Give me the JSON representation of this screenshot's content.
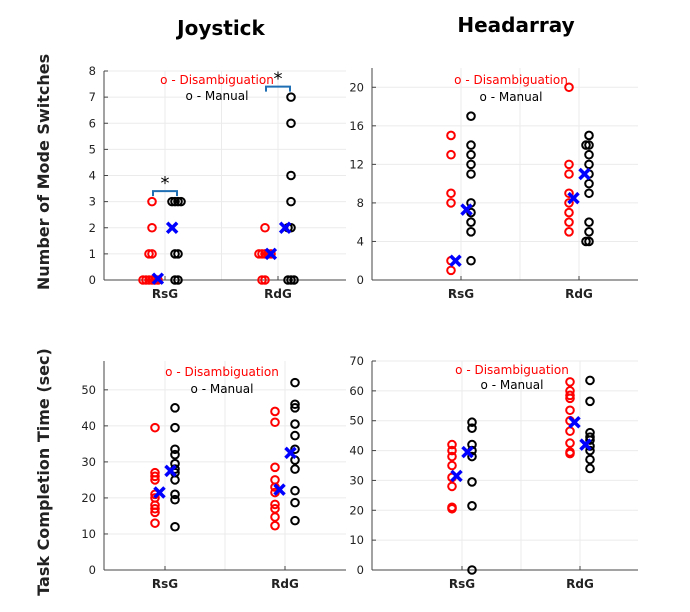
{
  "figure": {
    "column_titles": [
      "Joystick",
      "Headarray"
    ],
    "row_ylabels": [
      "Number of Mode Switches",
      "Task Completion Time (sec)"
    ]
  },
  "legend": {
    "disambiguation": "o - Disambiguation",
    "manual": "o - Manual",
    "disambiguation_color": "#ff0000",
    "manual_color": "#000000",
    "mean_color": "#0000ff"
  },
  "chart_data": [
    {
      "type": "scatter",
      "title": "Joystick",
      "ylabel": "Number of Mode Switches",
      "categories": [
        "RsG",
        "RdG"
      ],
      "ylim": [
        0,
        8
      ],
      "yticks": [
        0,
        1,
        2,
        3,
        4,
        5,
        6,
        7,
        8
      ],
      "grid": true,
      "legend_position": "top",
      "significance": [
        {
          "category": "RsG",
          "label": "*",
          "y": 3.4
        },
        {
          "category": "RdG",
          "label": "*",
          "y": 7.4
        }
      ],
      "series": [
        {
          "name": "Disambiguation",
          "values": [
            [
              0,
              0,
              0,
              0,
              0,
              0,
              1,
              1,
              2,
              3
            ],
            [
              0,
              0,
              1,
              1,
              1,
              1,
              1,
              2
            ]
          ],
          "mean": [
            0.05,
            1.0
          ]
        },
        {
          "name": "Manual",
          "values": [
            [
              0,
              0,
              1,
              1,
              3,
              3,
              3,
              3
            ],
            [
              0,
              0,
              0,
              2,
              2,
              3,
              4,
              6,
              7
            ]
          ],
          "mean": [
            2.0,
            2.0
          ]
        }
      ]
    },
    {
      "type": "scatter",
      "title": "Headarray",
      "ylabel": "",
      "categories": [
        "RsG",
        "RdG"
      ],
      "ylim": [
        0,
        22
      ],
      "yticks": [
        0,
        4,
        8,
        12,
        16,
        20
      ],
      "grid": true,
      "legend_position": "top",
      "series": [
        {
          "name": "Disambiguation",
          "values": [
            [
              1,
              2,
              8,
              9,
              13,
              15
            ],
            [
              5,
              6,
              7,
              8,
              9,
              11,
              12,
              20
            ]
          ],
          "mean": [
            2.0,
            8.5
          ]
        },
        {
          "name": "Manual",
          "values": [
            [
              2,
              5,
              6,
              7,
              8,
              11,
              12,
              13,
              14,
              17
            ],
            [
              4,
              4,
              5,
              6,
              9,
              10,
              11,
              12,
              13,
              14,
              14,
              15
            ]
          ],
          "mean": [
            7.3,
            11.0
          ]
        }
      ]
    },
    {
      "type": "scatter",
      "title": "",
      "ylabel": "Task Completion Time (sec)",
      "categories": [
        "RsG",
        "RdG"
      ],
      "ylim": [
        0,
        58
      ],
      "yticks": [
        0,
        10,
        20,
        30,
        40,
        50
      ],
      "grid": true,
      "legend_position": "top",
      "series": [
        {
          "name": "Disambiguation",
          "values": [
            [
              13,
              16,
              17,
              18,
              20,
              21,
              25,
              26,
              27,
              39.5
            ],
            [
              12.3,
              14.7,
              17,
              18.2,
              21.5,
              23,
              25,
              28.5,
              41,
              44
            ]
          ],
          "mean": [
            21.5,
            22.3
          ]
        },
        {
          "name": "Manual",
          "values": [
            [
              12,
              19.5,
              21,
              25,
              27,
              28,
              29.5,
              32,
              33.5,
              39.5,
              45
            ],
            [
              13.7,
              18.7,
              22,
              28,
              30.5,
              33.5,
              37.3,
              40.5,
              45,
              46,
              52
            ]
          ],
          "mean": [
            27.5,
            32.5
          ]
        }
      ]
    },
    {
      "type": "scatter",
      "title": "",
      "ylabel": "",
      "categories": [
        "RsG",
        "RdG"
      ],
      "ylim": [
        0,
        70
      ],
      "yticks": [
        0,
        10,
        20,
        30,
        40,
        50,
        60,
        70
      ],
      "grid": true,
      "legend_position": "top",
      "series": [
        {
          "name": "Disambiguation",
          "values": [
            [
              20.5,
              21,
              28,
              31,
              35,
              38,
              40,
              42
            ],
            [
              39,
              39.5,
              42.5,
              46.5,
              50,
              53.5,
              57.5,
              58.5,
              60,
              63
            ]
          ],
          "mean": [
            31.5,
            49.5
          ]
        },
        {
          "name": "Manual",
          "values": [
            [
              0,
              21.5,
              29.5,
              38,
              40,
              42,
              47.5,
              49.5
            ],
            [
              34,
              37,
              40,
              41.5,
              43.5,
              44.5,
              46,
              56.5,
              63.5
            ]
          ],
          "mean": [
            39.5,
            42.0
          ]
        }
      ]
    }
  ]
}
